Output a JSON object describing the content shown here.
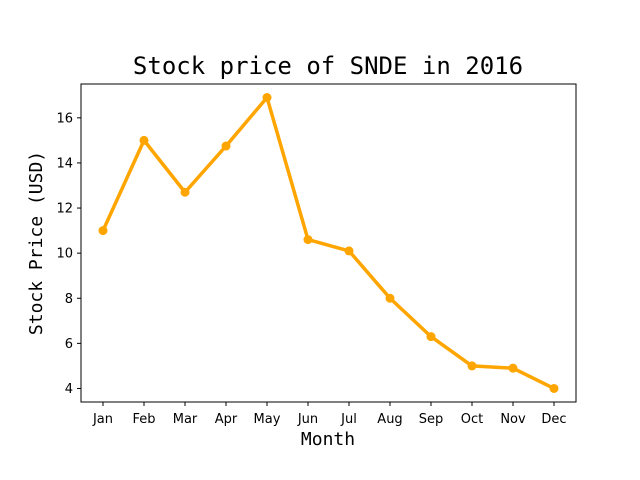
{
  "chart_data": {
    "type": "line",
    "title": "Stock price of SNDE in 2016",
    "xlabel": "Month",
    "ylabel": "Stock Price (USD)",
    "categories": [
      "Jan",
      "Feb",
      "Mar",
      "Apr",
      "May",
      "Jun",
      "Jul",
      "Aug",
      "Sep",
      "Oct",
      "Nov",
      "Dec"
    ],
    "series": [
      {
        "values": [
          11.0,
          15.0,
          12.7,
          14.75,
          16.9,
          10.6,
          10.1,
          8.0,
          6.3,
          5.0,
          4.9,
          4.0
        ],
        "color": "#FFA500"
      }
    ],
    "ylim": [
      3.4,
      17.5
    ],
    "yticks": [
      4,
      6,
      8,
      10,
      12,
      14,
      16
    ],
    "grid": false,
    "markers": true
  }
}
